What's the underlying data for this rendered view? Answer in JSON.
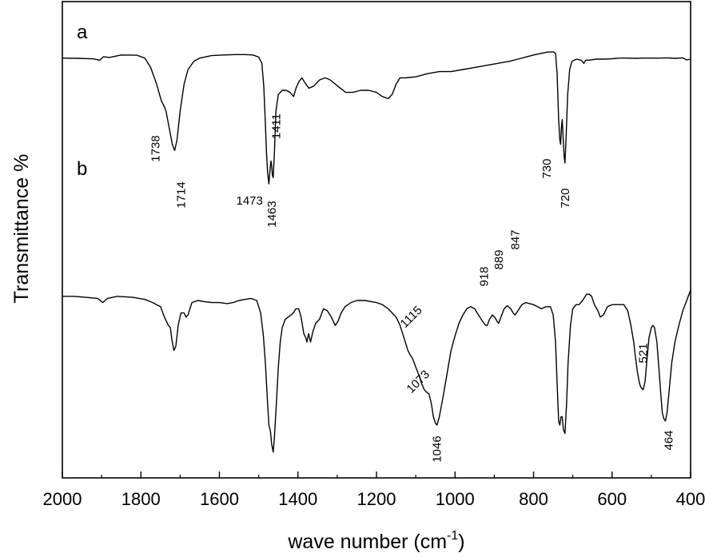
{
  "chart_data": {
    "type": "line",
    "xlabel": "wave number (cm",
    "xlabel_sup": "-1",
    "xlabel_end": ")",
    "ylabel": "Transmittance %",
    "xlim": [
      2000,
      400
    ],
    "x_reversed": true,
    "x_ticks": [
      2000,
      1800,
      1600,
      1400,
      1200,
      1000,
      800,
      600,
      400
    ],
    "y_ticks_shown": false,
    "grid": false,
    "legend": "none",
    "series": [
      {
        "name": "a",
        "peaks": [
          {
            "x": 1738,
            "label": "1738"
          },
          {
            "x": 1714,
            "label": "1714"
          },
          {
            "x": 1473,
            "label": "1473"
          },
          {
            "x": 1463,
            "label": "1463"
          },
          {
            "x": 1411,
            "label": "1411"
          },
          {
            "x": 730,
            "label": "730"
          },
          {
            "x": 720,
            "label": "720"
          }
        ],
        "points": [
          [
            2000,
            4.5
          ],
          [
            1960,
            4.6
          ],
          [
            1920,
            4.9
          ],
          [
            1905,
            5.5
          ],
          [
            1895,
            3.8
          ],
          [
            1880,
            4.2
          ],
          [
            1850,
            3.0
          ],
          [
            1810,
            3.1
          ],
          [
            1790,
            4.5
          ],
          [
            1775,
            9
          ],
          [
            1760,
            17
          ],
          [
            1748,
            25
          ],
          [
            1740,
            28
          ],
          [
            1736,
            30
          ],
          [
            1728,
            38
          ],
          [
            1720,
            46
          ],
          [
            1714,
            49
          ],
          [
            1708,
            44
          ],
          [
            1700,
            30
          ],
          [
            1690,
            17
          ],
          [
            1680,
            10
          ],
          [
            1665,
            6
          ],
          [
            1650,
            4.5
          ],
          [
            1620,
            3.3
          ],
          [
            1590,
            3.0
          ],
          [
            1560,
            2.8
          ],
          [
            1535,
            2.8
          ],
          [
            1515,
            3.0
          ],
          [
            1500,
            4.0
          ],
          [
            1492,
            7
          ],
          [
            1487,
            18
          ],
          [
            1483,
            36
          ],
          [
            1480,
            50
          ],
          [
            1477,
            60
          ],
          [
            1474,
            65
          ],
          [
            1471,
            58
          ],
          [
            1469,
            54
          ],
          [
            1467,
            56
          ],
          [
            1465,
            61
          ],
          [
            1463,
            62
          ],
          [
            1460,
            50
          ],
          [
            1456,
            30
          ],
          [
            1450,
            22
          ],
          [
            1440,
            20
          ],
          [
            1430,
            20
          ],
          [
            1420,
            21
          ],
          [
            1411,
            23
          ],
          [
            1405,
            19
          ],
          [
            1398,
            16
          ],
          [
            1390,
            14
          ],
          [
            1380,
            17
          ],
          [
            1372,
            19
          ],
          [
            1360,
            18
          ],
          [
            1345,
            15
          ],
          [
            1330,
            14
          ],
          [
            1318,
            15
          ],
          [
            1305,
            17
          ],
          [
            1292,
            19
          ],
          [
            1278,
            21
          ],
          [
            1260,
            21
          ],
          [
            1240,
            20
          ],
          [
            1220,
            20
          ],
          [
            1200,
            21
          ],
          [
            1185,
            23
          ],
          [
            1170,
            24
          ],
          [
            1160,
            22
          ],
          [
            1150,
            17
          ],
          [
            1140,
            14
          ],
          [
            1125,
            14
          ],
          [
            1100,
            13.5
          ],
          [
            1070,
            12
          ],
          [
            1040,
            11
          ],
          [
            1010,
            11
          ],
          [
            980,
            10
          ],
          [
            950,
            9
          ],
          [
            920,
            8
          ],
          [
            890,
            7
          ],
          [
            860,
            6
          ],
          [
            840,
            5
          ],
          [
            820,
            4
          ],
          [
            800,
            3
          ],
          [
            780,
            2.2
          ],
          [
            765,
            1.6
          ],
          [
            750,
            1.5
          ],
          [
            744,
            2.2
          ],
          [
            740,
            12
          ],
          [
            736,
            34
          ],
          [
            733,
            44
          ],
          [
            731,
            46
          ],
          [
            729,
            38
          ],
          [
            727,
            34
          ],
          [
            725,
            41
          ],
          [
            722,
            52
          ],
          [
            720,
            55
          ],
          [
            717,
            42
          ],
          [
            713,
            22
          ],
          [
            708,
            10
          ],
          [
            702,
            6
          ],
          [
            690,
            5
          ],
          [
            678,
            5.6
          ],
          [
            672,
            7
          ],
          [
            667,
            5.5
          ],
          [
            660,
            5.5
          ],
          [
            640,
            5
          ],
          [
            620,
            5
          ],
          [
            600,
            4.8
          ],
          [
            580,
            4.5
          ],
          [
            560,
            4.5
          ],
          [
            540,
            4.6
          ],
          [
            520,
            4.5
          ],
          [
            500,
            4.5
          ],
          [
            480,
            4.5
          ],
          [
            460,
            4.4
          ],
          [
            440,
            4.6
          ],
          [
            420,
            4.4
          ],
          [
            410,
            5.4
          ],
          [
            400,
            5.0
          ]
        ]
      },
      {
        "name": "b",
        "peaks": [
          {
            "x": 1115,
            "label": "1115"
          },
          {
            "x": 1073,
            "label": "1073"
          },
          {
            "x": 1046,
            "label": "1046"
          },
          {
            "x": 918,
            "label": "918"
          },
          {
            "x": 889,
            "label": "889"
          },
          {
            "x": 847,
            "label": "847"
          },
          {
            "x": 521,
            "label": "521"
          },
          {
            "x": 464,
            "label": "464"
          }
        ],
        "points": [
          [
            2000,
            48
          ],
          [
            1970,
            48
          ],
          [
            1940,
            48.5
          ],
          [
            1910,
            49
          ],
          [
            1897,
            51
          ],
          [
            1885,
            49
          ],
          [
            1860,
            48
          ],
          [
            1820,
            48.5
          ],
          [
            1790,
            49.5
          ],
          [
            1770,
            51
          ],
          [
            1750,
            53
          ],
          [
            1740,
            58
          ],
          [
            1730,
            62
          ],
          [
            1725,
            63
          ],
          [
            1721,
            69
          ],
          [
            1716,
            74
          ],
          [
            1711,
            72
          ],
          [
            1705,
            62
          ],
          [
            1698,
            56
          ],
          [
            1690,
            56
          ],
          [
            1685,
            58
          ],
          [
            1680,
            57
          ],
          [
            1670,
            51
          ],
          [
            1655,
            50
          ],
          [
            1640,
            50.5
          ],
          [
            1620,
            51
          ],
          [
            1600,
            51
          ],
          [
            1580,
            51.5
          ],
          [
            1565,
            51
          ],
          [
            1550,
            50
          ],
          [
            1535,
            49.5
          ],
          [
            1520,
            49
          ],
          [
            1505,
            50
          ],
          [
            1495,
            56
          ],
          [
            1488,
            67
          ],
          [
            1483,
            80
          ],
          [
            1478,
            97
          ],
          [
            1474,
            110
          ],
          [
            1470,
            113
          ],
          [
            1467,
            119
          ],
          [
            1463,
            123
          ],
          [
            1460,
            116
          ],
          [
            1455,
            100
          ],
          [
            1450,
            82
          ],
          [
            1445,
            70
          ],
          [
            1440,
            63
          ],
          [
            1432,
            59
          ],
          [
            1425,
            58
          ],
          [
            1418,
            57
          ],
          [
            1412,
            56
          ],
          [
            1405,
            54
          ],
          [
            1398,
            54
          ],
          [
            1392,
            58
          ],
          [
            1385,
            66
          ],
          [
            1380,
            68
          ],
          [
            1377,
            70
          ],
          [
            1373,
            66
          ],
          [
            1368,
            70
          ],
          [
            1362,
            65
          ],
          [
            1355,
            61
          ],
          [
            1345,
            59
          ],
          [
            1335,
            54
          ],
          [
            1325,
            55
          ],
          [
            1315,
            58
          ],
          [
            1305,
            62
          ],
          [
            1298,
            60
          ],
          [
            1290,
            56
          ],
          [
            1280,
            53
          ],
          [
            1265,
            51
          ],
          [
            1250,
            50
          ],
          [
            1230,
            50
          ],
          [
            1215,
            50.5
          ],
          [
            1200,
            51
          ],
          [
            1185,
            52
          ],
          [
            1170,
            54
          ],
          [
            1160,
            56
          ],
          [
            1150,
            58
          ],
          [
            1140,
            62
          ],
          [
            1130,
            68
          ],
          [
            1120,
            74
          ],
          [
            1115,
            76
          ],
          [
            1108,
            78
          ],
          [
            1100,
            82
          ],
          [
            1092,
            86
          ],
          [
            1085,
            90
          ],
          [
            1078,
            93
          ],
          [
            1073,
            94
          ],
          [
            1066,
            95
          ],
          [
            1060,
            100
          ],
          [
            1055,
            106
          ],
          [
            1050,
            109
          ],
          [
            1046,
            110
          ],
          [
            1040,
            106
          ],
          [
            1030,
            96
          ],
          [
            1020,
            85
          ],
          [
            1010,
            74
          ],
          [
            1000,
            67
          ],
          [
            990,
            61
          ],
          [
            980,
            57
          ],
          [
            970,
            54
          ],
          [
            960,
            53
          ],
          [
            950,
            54
          ],
          [
            940,
            57
          ],
          [
            930,
            60
          ],
          [
            922,
            62
          ],
          [
            918,
            62
          ],
          [
            912,
            59
          ],
          [
            905,
            57
          ],
          [
            899,
            58
          ],
          [
            893,
            60
          ],
          [
            889,
            61
          ],
          [
            883,
            58
          ],
          [
            875,
            54
          ],
          [
            867,
            52.5
          ],
          [
            858,
            54
          ],
          [
            852,
            56
          ],
          [
            847,
            57
          ],
          [
            840,
            55
          ],
          [
            830,
            52
          ],
          [
            820,
            51
          ],
          [
            810,
            51.5
          ],
          [
            800,
            52
          ],
          [
            790,
            53
          ],
          [
            780,
            54
          ],
          [
            768,
            53
          ],
          [
            757,
            53
          ],
          [
            750,
            57
          ],
          [
            744,
            70
          ],
          [
            740,
            90
          ],
          [
            736,
            108
          ],
          [
            733,
            110
          ],
          [
            730,
            106
          ],
          [
            727,
            106
          ],
          [
            724,
            112
          ],
          [
            720,
            114
          ],
          [
            716,
            100
          ],
          [
            712,
            80
          ],
          [
            706,
            62
          ],
          [
            700,
            54
          ],
          [
            692,
            52
          ],
          [
            684,
            52
          ],
          [
            675,
            50
          ],
          [
            665,
            47
          ],
          [
            658,
            47
          ],
          [
            652,
            48
          ],
          [
            645,
            52
          ],
          [
            636,
            55
          ],
          [
            630,
            58
          ],
          [
            622,
            57
          ],
          [
            612,
            53
          ],
          [
            600,
            52
          ],
          [
            580,
            52
          ],
          [
            570,
            52
          ],
          [
            560,
            55
          ],
          [
            552,
            62
          ],
          [
            545,
            70
          ],
          [
            540,
            78
          ],
          [
            535,
            85
          ],
          [
            530,
            90
          ],
          [
            526,
            92
          ],
          [
            521,
            93
          ],
          [
            516,
            89
          ],
          [
            511,
            78
          ],
          [
            506,
            68
          ],
          [
            500,
            63
          ],
          [
            496,
            62
          ],
          [
            492,
            63
          ],
          [
            486,
            70
          ],
          [
            481,
            82
          ],
          [
            476,
            95
          ],
          [
            472,
            104
          ],
          [
            468,
            107
          ],
          [
            464,
            108
          ],
          [
            460,
            104
          ],
          [
            455,
            94
          ],
          [
            448,
            80
          ],
          [
            440,
            70
          ],
          [
            430,
            62
          ],
          [
            420,
            55
          ],
          [
            410,
            50
          ],
          [
            400,
            45
          ]
        ]
      }
    ]
  },
  "panel_labels": {
    "a": "a",
    "b": "b"
  }
}
